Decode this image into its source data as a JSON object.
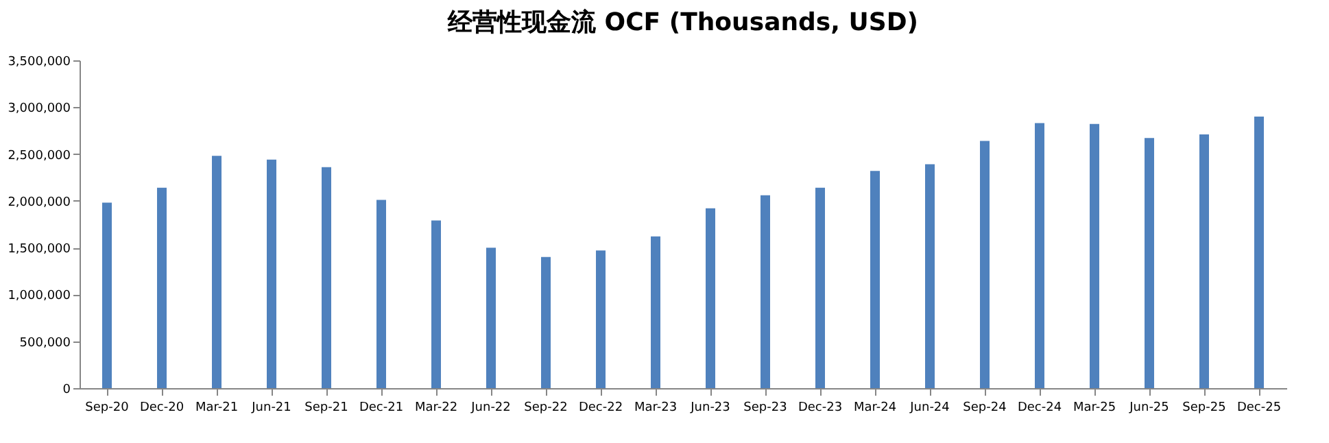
{
  "chart_data": {
    "type": "bar",
    "title": "经营性现金流 OCF (Thousands, USD)",
    "categories": [
      "Sep-20",
      "Dec-20",
      "Mar-21",
      "Jun-21",
      "Sep-21",
      "Dec-21",
      "Mar-22",
      "Jun-22",
      "Sep-22",
      "Dec-22",
      "Mar-23",
      "Jun-23",
      "Sep-23",
      "Dec-23",
      "Mar-24",
      "Jun-24",
      "Sep-24",
      "Dec-24",
      "Mar-25",
      "Jun-25",
      "Sep-25",
      "Dec-25"
    ],
    "values": [
      1980000,
      2140000,
      2480000,
      2440000,
      2360000,
      2010000,
      1790000,
      1500000,
      1400000,
      1470000,
      1620000,
      1920000,
      2060000,
      2140000,
      2320000,
      2390000,
      2640000,
      2830000,
      2820000,
      2670000,
      2710000,
      2900000
    ],
    "color": "#4f81bd",
    "ylim": [
      0,
      3500000
    ],
    "yticks": [
      0,
      {
        "value": 500000,
        "label": "500,000"
      },
      {
        "value": 1000000,
        "label": "1,000,000"
      },
      {
        "value": 1500000,
        "label": "1,500,000"
      },
      {
        "value": 2000000,
        "label": "2,000,000"
      },
      {
        "value": 2500000,
        "label": "2,500,000"
      },
      {
        "value": 3000000,
        "label": "3,000,000"
      },
      {
        "value": 3500000,
        "label": "3,500,000"
      }
    ],
    "grid": false
  }
}
